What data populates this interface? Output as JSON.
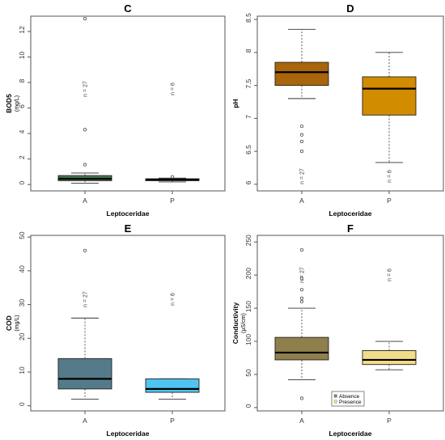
{
  "chart_data": [
    {
      "type": "box",
      "title": "C",
      "xlabel": "Leptoceridae",
      "ylabel": "BOD5",
      "yunit": "(mg/L)",
      "ylim": [
        -0.5,
        13.2
      ],
      "yticks": [
        0,
        2,
        4,
        6,
        8,
        10,
        12
      ],
      "categories": [
        "A",
        "P"
      ],
      "boxes": [
        {
          "name": "A",
          "min": 0.1,
          "q1": 0.3,
          "median": 0.45,
          "q3": 0.7,
          "max": 0.9,
          "outliers": [
            13.0,
            4.3,
            1.55
          ],
          "n_label": "n = 27",
          "color": "#4a7a52"
        },
        {
          "name": "P",
          "min": 0.2,
          "q1": 0.3,
          "median": 0.38,
          "q3": 0.45,
          "max": 0.5,
          "outliers": [
            0.6
          ],
          "n_label": "n = 6",
          "color": "#4a7a52"
        }
      ]
    },
    {
      "type": "box",
      "title": "D",
      "xlabel": "Leptoceridae",
      "ylabel": "pH",
      "yunit": "",
      "ylim": [
        5.9,
        8.55
      ],
      "yticks": [
        6.0,
        6.5,
        7.0,
        7.5,
        8.0,
        8.5
      ],
      "categories": [
        "A",
        "P"
      ],
      "boxes": [
        {
          "name": "A",
          "min": 7.3,
          "q1": 7.5,
          "median": 7.7,
          "q3": 7.85,
          "max": 8.35,
          "outliers": [
            6.88,
            6.75,
            6.65,
            6.5
          ],
          "n_label": "n = 27",
          "color": "#a8650a"
        },
        {
          "name": "P",
          "min": 6.33,
          "q1": 7.05,
          "median": 7.45,
          "q3": 7.63,
          "max": 8.0,
          "outliers": [],
          "n_label": "n = 6",
          "color": "#d18c00"
        }
      ]
    },
    {
      "type": "box",
      "title": "E",
      "xlabel": "Leptoceridae",
      "ylabel": "COD",
      "yunit": "(mg/L)",
      "ylim": [
        -1.5,
        50.5
      ],
      "yticks": [
        0,
        10,
        20,
        30,
        40,
        50
      ],
      "categories": [
        "A",
        "P"
      ],
      "boxes": [
        {
          "name": "A",
          "min": 2,
          "q1": 5,
          "median": 8,
          "q3": 14,
          "max": 26,
          "outliers": [
            46
          ],
          "n_label": "n = 27",
          "color": "#557b8a"
        },
        {
          "name": "P",
          "min": 2,
          "q1": 4,
          "median": 5,
          "q3": 8,
          "max": 8,
          "outliers": [],
          "n_label": "n = 6",
          "color": "#4fc4f0"
        }
      ]
    },
    {
      "type": "box",
      "title": "F",
      "xlabel": "Leptoceridae",
      "ylabel": "Conductivity",
      "yunit": "(µS/cm)",
      "ylim": [
        -5,
        260
      ],
      "yticks": [
        0,
        50,
        100,
        150,
        200,
        250
      ],
      "categories": [
        "A",
        "P"
      ],
      "boxes": [
        {
          "name": "A",
          "min": 42,
          "q1": 72,
          "median": 83,
          "q3": 106,
          "max": 150,
          "outliers": [
            14,
            160,
            165,
            178,
            195,
            238
          ],
          "n_label": "n = 27",
          "color": "#8f7f4c"
        },
        {
          "name": "P",
          "min": 57,
          "q1": 65,
          "median": 72,
          "q3": 86,
          "max": 100,
          "outliers": [],
          "n_label": "n = 6",
          "color": "#f2dc8a"
        }
      ],
      "legend": {
        "placement": "bottom-center",
        "entries": [
          {
            "label": "Absence",
            "color": "#8f7f4c"
          },
          {
            "label": "Presence",
            "color": "#f2dc8a"
          }
        ]
      }
    }
  ]
}
